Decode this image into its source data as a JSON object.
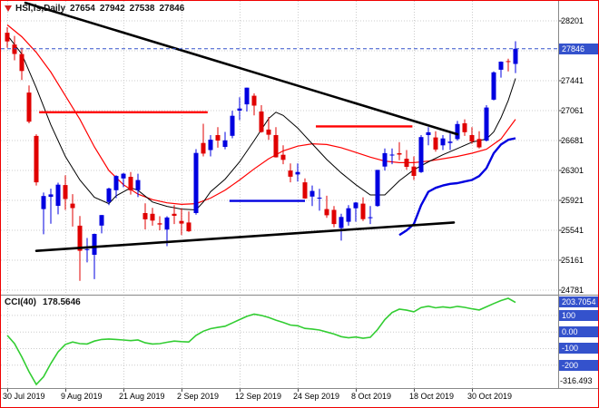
{
  "window": {
    "symbol_period": "HSI,fs,Daily",
    "open": "27654",
    "high": "27942",
    "low": "27538",
    "close": "27846"
  },
  "oscillator": {
    "name": "CCI(40)",
    "value": "178.5646",
    "scale_max": "203.7054",
    "scale_min": "-316.493",
    "level_labels": [
      "100",
      "0.00",
      "-100",
      "-200"
    ]
  },
  "price_axis": {
    "current_price": "27846",
    "labels": [
      "28201",
      "27441",
      "27061",
      "26681",
      "26301",
      "25921",
      "25541",
      "25161",
      "24781"
    ]
  },
  "time_axis": {
    "labels": [
      "30 Jul 2019",
      "9 Aug 2019",
      "21 Aug 2019",
      "2 Sep 2019",
      "12 Sep 2019",
      "24 Sep 2019",
      "8 Oct 2019",
      "18 Oct 2019",
      "30 Oct 2019"
    ]
  },
  "colors": {
    "up_candle": "#0000e0",
    "down_candle": "#e00000",
    "ma_fast": "#000000",
    "ma_slow": "#ff0000",
    "support": "#0000e0",
    "resistance": "#ff0000",
    "trendline": "#000000",
    "cci_line": "#32cd32",
    "grid": "#cccccc",
    "axis_box": "#3452cc",
    "separator": "#888888",
    "window_border": "#f00000"
  },
  "chart_data": {
    "type": "candlestick",
    "symbol": "HSI",
    "timeframe": "Daily",
    "title": "HSI,fs,Daily",
    "price_axis_step": 380,
    "price_gridlines": [
      28201,
      27821,
      27441,
      27061,
      26681,
      26301,
      25921,
      25541,
      25161,
      24781
    ],
    "time_gridline_candle_indexes": [
      0,
      8,
      16,
      24,
      32,
      40,
      48,
      56,
      64
    ],
    "dates": [
      "2019-07-30",
      "2019-07-31",
      "2019-08-01",
      "2019-08-02",
      "2019-08-05",
      "2019-08-06",
      "2019-08-07",
      "2019-08-08",
      "2019-08-09",
      "2019-08-12",
      "2019-08-13",
      "2019-08-14",
      "2019-08-15",
      "2019-08-16",
      "2019-08-19",
      "2019-08-20",
      "2019-08-21",
      "2019-08-22",
      "2019-08-23",
      "2019-08-26",
      "2019-08-27",
      "2019-08-28",
      "2019-08-29",
      "2019-08-30",
      "2019-09-02",
      "2019-09-03",
      "2019-09-04",
      "2019-09-05",
      "2019-09-06",
      "2019-09-09",
      "2019-09-10",
      "2019-09-11",
      "2019-09-12",
      "2019-09-13",
      "2019-09-16",
      "2019-09-17",
      "2019-09-18",
      "2019-09-19",
      "2019-09-20",
      "2019-09-23",
      "2019-09-24",
      "2019-09-25",
      "2019-09-26",
      "2019-09-27",
      "2019-09-30",
      "2019-10-02",
      "2019-10-03",
      "2019-10-04",
      "2019-10-08",
      "2019-10-09",
      "2019-10-10",
      "2019-10-11",
      "2019-10-14",
      "2019-10-15",
      "2019-10-16",
      "2019-10-17",
      "2019-10-18",
      "2019-10-21",
      "2019-10-22",
      "2019-10-23",
      "2019-10-24",
      "2019-10-25",
      "2019-10-28",
      "2019-10-29",
      "2019-10-30",
      "2019-10-31",
      "2019-11-01",
      "2019-11-04",
      "2019-11-05",
      "2019-11-06",
      "2019-11-07"
    ],
    "candles": [
      [
        28050,
        28120,
        27860,
        27940
      ],
      [
        27900,
        28010,
        27700,
        27780
      ],
      [
        27780,
        27860,
        27450,
        27565
      ],
      [
        27290,
        27380,
        26900,
        26920
      ],
      [
        26740,
        26760,
        26110,
        26151
      ],
      [
        25810,
        26020,
        25490,
        25976
      ],
      [
        25966,
        26070,
        25625,
        25997
      ],
      [
        25852,
        26146,
        25744,
        26120
      ],
      [
        26116,
        26239,
        25800,
        25939
      ],
      [
        25880,
        26000,
        25588,
        25824
      ],
      [
        25600,
        25722,
        24899,
        25281
      ],
      [
        25290,
        25443,
        25133,
        25302
      ],
      [
        25230,
        25500,
        24920,
        25495
      ],
      [
        25600,
        25736,
        25502,
        25734
      ],
      [
        25900,
        26082,
        25860,
        26072
      ],
      [
        26050,
        26240,
        25950,
        26231
      ],
      [
        26200,
        26270,
        26088,
        26260
      ],
      [
        26220,
        26281,
        25995,
        26048
      ],
      [
        26050,
        26260,
        25963,
        26179
      ],
      [
        25760,
        25883,
        25552,
        25680
      ],
      [
        25750,
        25825,
        25600,
        25664
      ],
      [
        25630,
        25720,
        25541,
        25615
      ],
      [
        25550,
        25720,
        25340,
        25703
      ],
      [
        25750,
        25860,
        25620,
        25725
      ],
      [
        25660,
        25820,
        25480,
        25627
      ],
      [
        25640,
        25780,
        25520,
        25528
      ],
      [
        25760,
        26572,
        25740,
        26523
      ],
      [
        26650,
        26894,
        26480,
        26515
      ],
      [
        26560,
        26750,
        26480,
        26691
      ],
      [
        26750,
        26850,
        26590,
        26681
      ],
      [
        26600,
        26790,
        26570,
        26683
      ],
      [
        26740,
        27060,
        26710,
        26995
      ],
      [
        27060,
        27230,
        26940,
        27087
      ],
      [
        27140,
        27354,
        27050,
        27352
      ],
      [
        27250,
        27280,
        27000,
        27124
      ],
      [
        27050,
        27130,
        26780,
        26790
      ],
      [
        26820,
        26980,
        26690,
        26754
      ],
      [
        26750,
        26850,
        26466,
        26468
      ],
      [
        26500,
        26620,
        26380,
        26435
      ],
      [
        26300,
        26390,
        26150,
        26222
      ],
      [
        26250,
        26390,
        26160,
        26281
      ],
      [
        26150,
        26200,
        25940,
        25945
      ],
      [
        25970,
        26110,
        25850,
        26041
      ],
      [
        25950,
        26067,
        25790,
        25955
      ],
      [
        25810,
        25980,
        25700,
        25732
      ],
      [
        25800,
        25850,
        25580,
        25620
      ],
      [
        25570,
        25750,
        25410,
        25710
      ],
      [
        25650,
        25860,
        25600,
        25821
      ],
      [
        25820,
        25900,
        25650,
        25893
      ],
      [
        25880,
        25960,
        25660,
        25683
      ],
      [
        25700,
        25850,
        25620,
        25707
      ],
      [
        25850,
        26308,
        25840,
        26308
      ],
      [
        26350,
        26580,
        26300,
        26521
      ],
      [
        26500,
        26580,
        26380,
        26503
      ],
      [
        26520,
        26660,
        26430,
        26503
      ],
      [
        26450,
        26560,
        26310,
        26348
      ],
      [
        26350,
        26480,
        26180,
        26231
      ],
      [
        26280,
        26750,
        26270,
        26725
      ],
      [
        26750,
        26850,
        26620,
        26786
      ],
      [
        26720,
        26800,
        26540,
        26567
      ],
      [
        26620,
        26750,
        26560,
        26707
      ],
      [
        26650,
        26770,
        26560,
        26667
      ],
      [
        26700,
        26930,
        26680,
        26891
      ],
      [
        26900,
        26950,
        26740,
        26787
      ],
      [
        26750,
        26850,
        26640,
        26668
      ],
      [
        26700,
        26800,
        26580,
        26594
      ],
      [
        26680,
        27130,
        26670,
        27100
      ],
      [
        27200,
        27560,
        27190,
        27547
      ],
      [
        27580,
        27685,
        27480,
        27683
      ],
      [
        27690,
        27720,
        27560,
        27688
      ],
      [
        27654,
        27942,
        27538,
        27846
      ]
    ],
    "overlays": {
      "ma_fast_points": [
        [
          0,
          28020
        ],
        [
          2,
          27780
        ],
        [
          4,
          27350
        ],
        [
          6,
          26880
        ],
        [
          8,
          26480
        ],
        [
          10,
          26180
        ],
        [
          12,
          25960
        ],
        [
          14,
          25880
        ],
        [
          15,
          25980
        ],
        [
          17,
          26080
        ],
        [
          18,
          26050
        ],
        [
          20,
          25900
        ],
        [
          22,
          25845
        ],
        [
          24,
          25810
        ],
        [
          26,
          25800
        ],
        [
          27,
          25900
        ],
        [
          28,
          26030
        ],
        [
          30,
          26190
        ],
        [
          32,
          26410
        ],
        [
          34,
          26680
        ],
        [
          36,
          26960
        ],
        [
          37,
          27040
        ],
        [
          38,
          27000
        ],
        [
          40,
          26840
        ],
        [
          42,
          26640
        ],
        [
          44,
          26440
        ],
        [
          46,
          26270
        ],
        [
          48,
          26120
        ],
        [
          50,
          25990
        ],
        [
          52,
          25990
        ],
        [
          54,
          26170
        ],
        [
          56,
          26310
        ],
        [
          58,
          26410
        ],
        [
          60,
          26500
        ],
        [
          62,
          26580
        ],
        [
          64,
          26660
        ],
        [
          66,
          26700
        ],
        [
          67,
          26790
        ],
        [
          68,
          26970
        ],
        [
          69,
          27190
        ],
        [
          70,
          27470
        ]
      ],
      "ma_slow_points": [
        [
          0,
          28150
        ],
        [
          2,
          28000
        ],
        [
          4,
          27800
        ],
        [
          6,
          27550
        ],
        [
          8,
          27250
        ],
        [
          10,
          26950
        ],
        [
          12,
          26600
        ],
        [
          14,
          26300
        ],
        [
          16,
          26120
        ],
        [
          18,
          26000
        ],
        [
          20,
          25930
        ],
        [
          22,
          25890
        ],
        [
          24,
          25870
        ],
        [
          26,
          25880
        ],
        [
          28,
          25950
        ],
        [
          30,
          26050
        ],
        [
          32,
          26180
        ],
        [
          34,
          26320
        ],
        [
          36,
          26450
        ],
        [
          38,
          26550
        ],
        [
          40,
          26610
        ],
        [
          42,
          26640
        ],
        [
          44,
          26630
        ],
        [
          46,
          26590
        ],
        [
          48,
          26530
        ],
        [
          50,
          26470
        ],
        [
          52,
          26420
        ],
        [
          54,
          26400
        ],
        [
          56,
          26400
        ],
        [
          58,
          26420
        ],
        [
          60,
          26450
        ],
        [
          62,
          26480
        ],
        [
          64,
          26520
        ],
        [
          66,
          26570
        ],
        [
          68,
          26700
        ],
        [
          70,
          26950
        ]
      ],
      "resistance_segments": [
        {
          "i1": 4.4,
          "i2": 27.6,
          "price": 27040
        },
        {
          "i1": 42.5,
          "i2": 55.8,
          "price": 26860
        }
      ],
      "support_segments": [
        {
          "i1": 30.6,
          "i2": 41,
          "price": 25915
        }
      ],
      "support_curve_points": [
        [
          54,
          25480
        ],
        [
          55,
          25540
        ],
        [
          56,
          25620
        ],
        [
          57,
          25860
        ],
        [
          58,
          26030
        ],
        [
          59,
          26080
        ],
        [
          60,
          26110
        ],
        [
          61,
          26130
        ],
        [
          62,
          26140
        ],
        [
          63,
          26160
        ],
        [
          64,
          26180
        ],
        [
          65,
          26230
        ],
        [
          66,
          26330
        ],
        [
          67,
          26520
        ],
        [
          68,
          26630
        ],
        [
          69,
          26690
        ],
        [
          70,
          26710
        ]
      ],
      "trendlines": [
        {
          "i1": 2.5,
          "p1": 28430,
          "i2": 62,
          "p2": 26760
        },
        {
          "i1": 4,
          "p1": 25280,
          "i2": 61.5,
          "p2": 25640
        }
      ],
      "bid_line_price": 27846
    },
    "oscillator": {
      "type": "line",
      "name": "CCI",
      "period": 40,
      "current_value": 178.5646,
      "scale_max": 203.7054,
      "scale_min": -316.493,
      "levels": [
        100,
        0,
        -100,
        -200
      ],
      "values": [
        -20,
        -70,
        -150,
        -240,
        -316.49,
        -270,
        -190,
        -120,
        -75,
        -60,
        -70,
        -72,
        -55,
        -45,
        -42,
        -45,
        -48,
        -52,
        -48,
        -65,
        -72,
        -70,
        -62,
        -55,
        -58,
        -60,
        -20,
        5,
        20,
        28,
        35,
        55,
        75,
        95,
        108,
        100,
        88,
        72,
        58,
        42,
        38,
        22,
        18,
        12,
        0,
        -12,
        -28,
        -35,
        -30,
        -38,
        -32,
        15,
        75,
        118,
        138,
        132,
        122,
        148,
        156,
        146,
        152,
        147,
        155,
        149,
        140,
        133,
        152,
        172,
        190,
        203.71,
        178.56
      ]
    }
  }
}
